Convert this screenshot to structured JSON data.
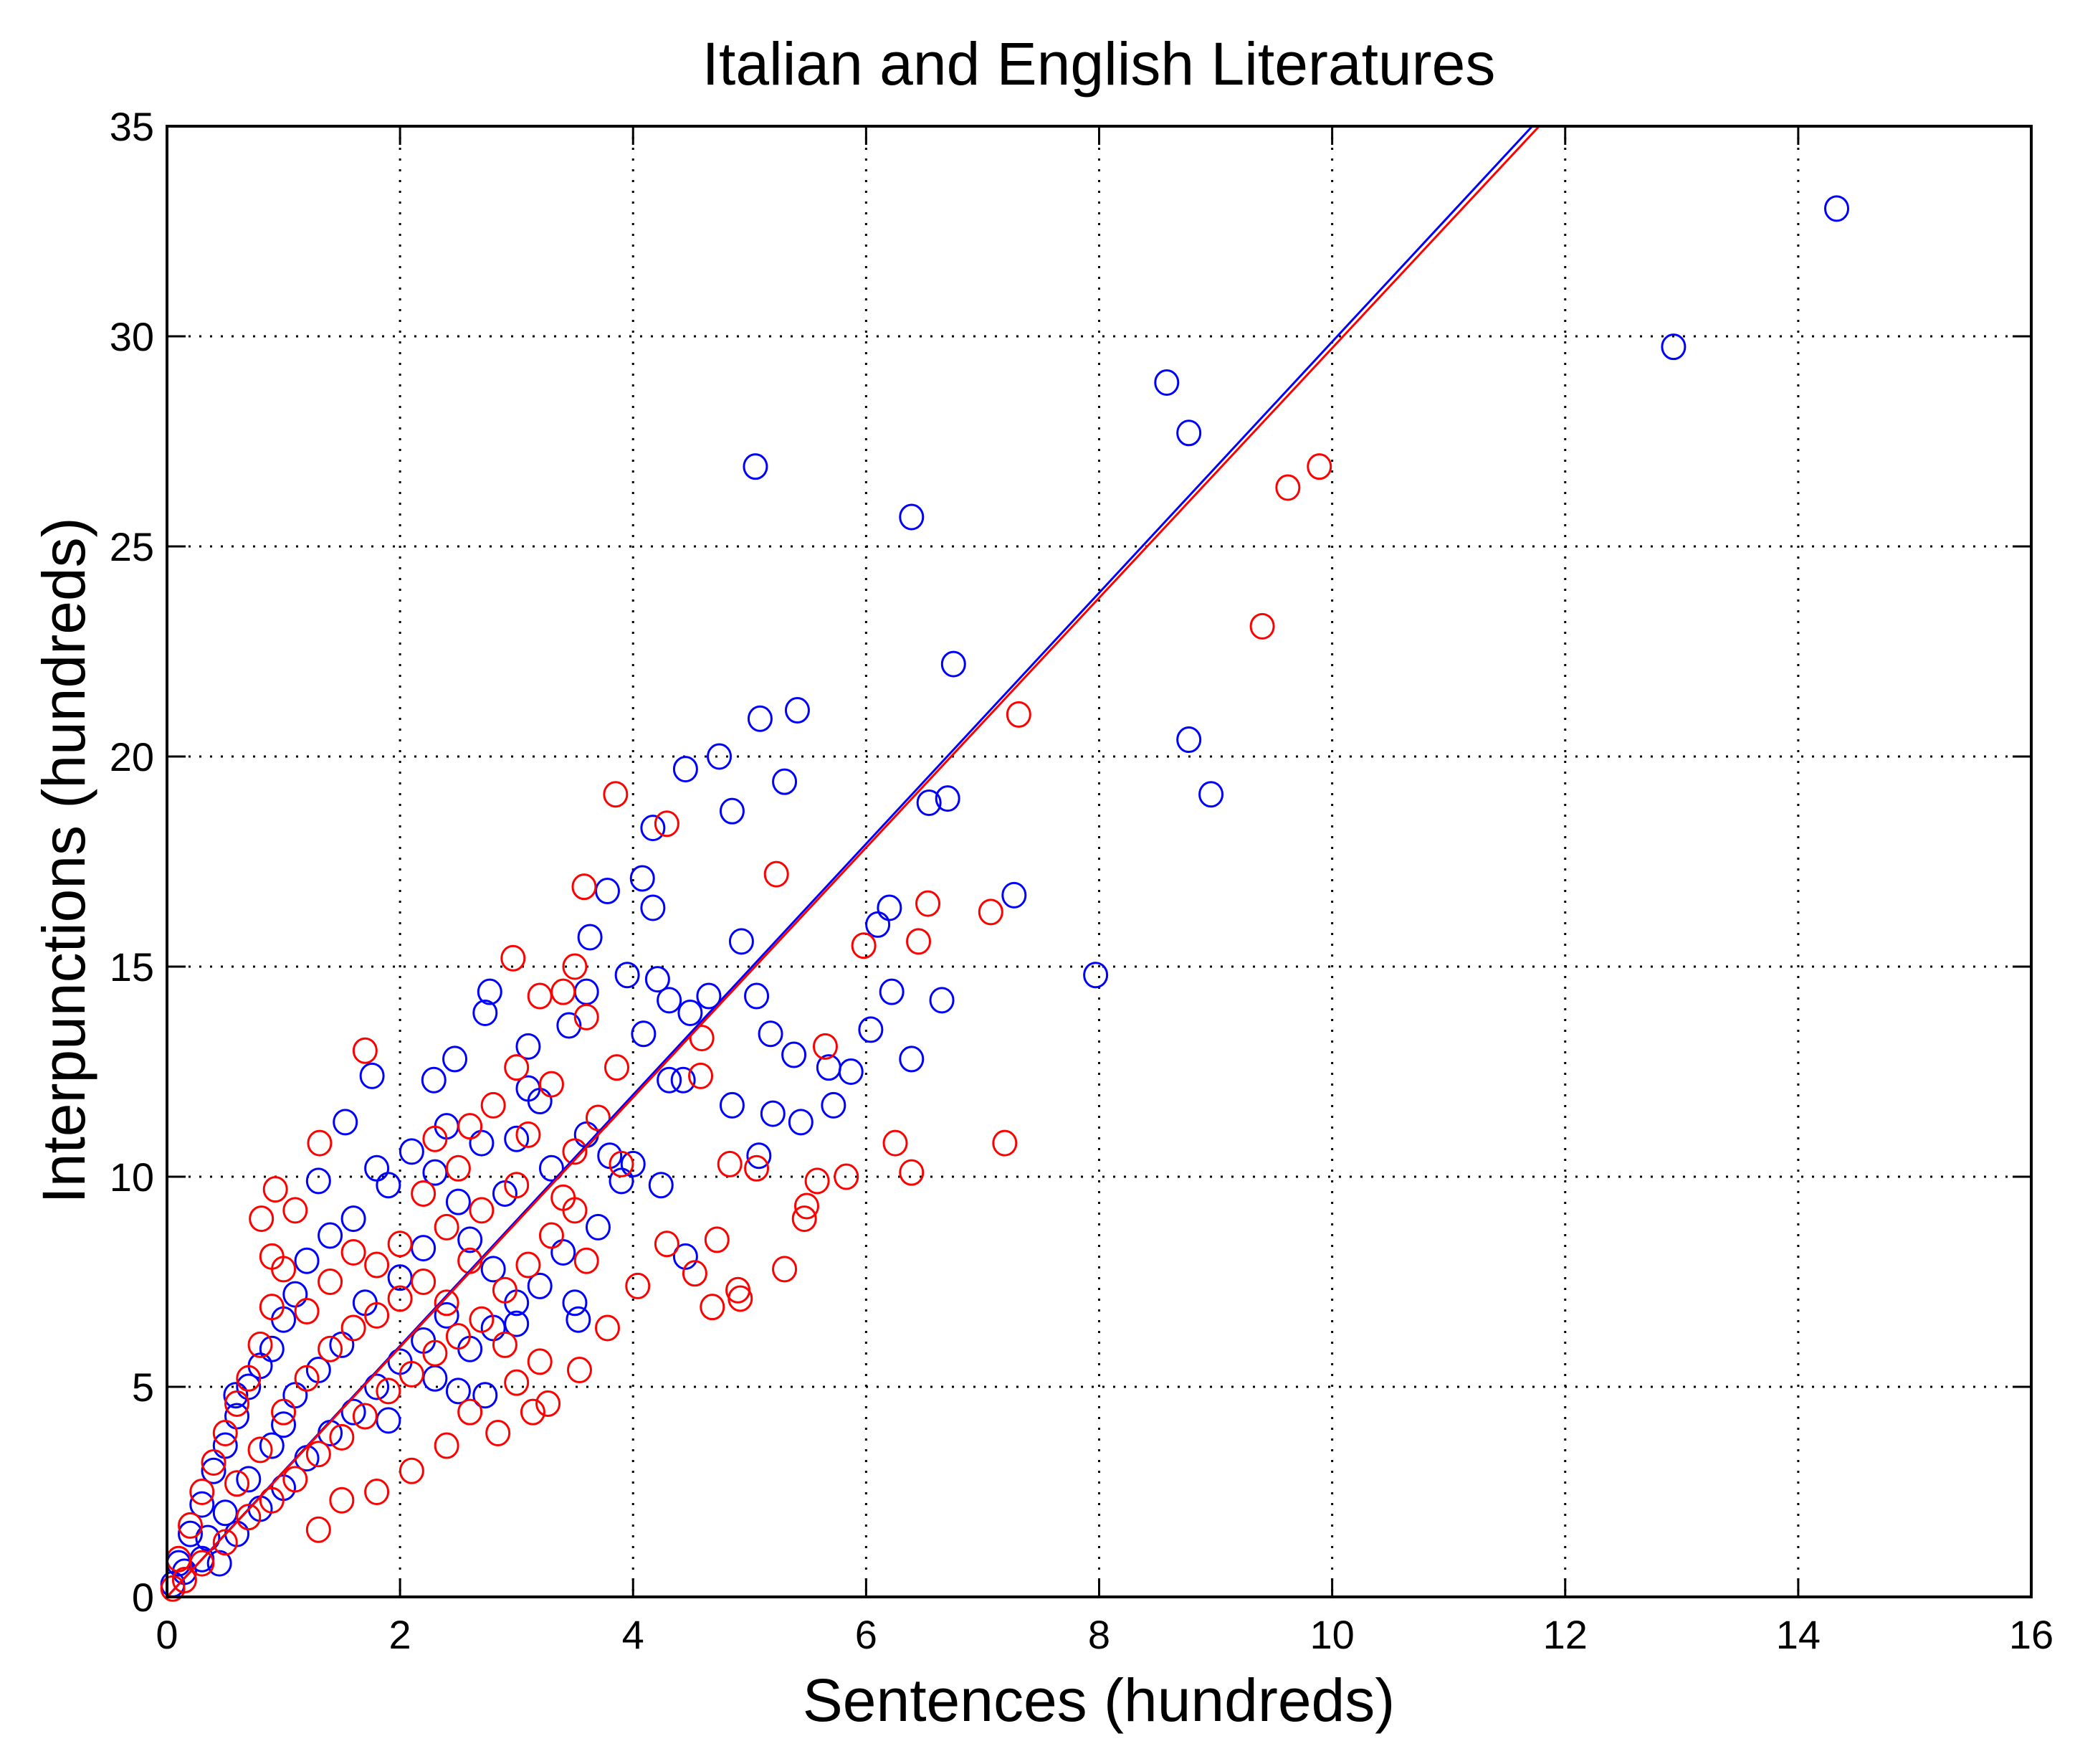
{
  "chart_data": {
    "type": "scatter",
    "title": "Italian and English Literatures",
    "xlabel": "Sentences (hundreds)",
    "ylabel": "Interpunctions (hundreds)",
    "xlim": [
      0,
      16
    ],
    "ylim": [
      0,
      35
    ],
    "xticks": [
      0,
      2,
      4,
      6,
      8,
      10,
      12,
      14,
      16
    ],
    "yticks": [
      0,
      5,
      10,
      15,
      20,
      25,
      30,
      35
    ],
    "grid": true,
    "marker": "circle-open",
    "series": [
      {
        "color": "#0000ff",
        "fit_line": {
          "slope": 2.987,
          "intercept": 0
        },
        "points": [
          [
            14.33,
            33.04
          ],
          [
            12.93,
            29.75
          ],
          [
            8.58,
            28.9
          ],
          [
            8.77,
            27.7
          ],
          [
            5.05,
            26.9
          ],
          [
            6.39,
            25.7
          ],
          [
            6.75,
            22.2
          ],
          [
            5.09,
            20.9
          ],
          [
            5.41,
            21.1
          ],
          [
            8.77,
            20.4
          ],
          [
            8.96,
            19.1
          ],
          [
            4.74,
            20.0
          ],
          [
            4.45,
            19.7
          ],
          [
            4.85,
            18.7
          ],
          [
            5.3,
            19.4
          ],
          [
            6.54,
            18.9
          ],
          [
            6.7,
            19.0
          ],
          [
            4.17,
            18.3
          ],
          [
            7.27,
            16.7
          ],
          [
            7.97,
            14.8
          ],
          [
            6.2,
            16.4
          ],
          [
            6.1,
            16.0
          ],
          [
            4.08,
            17.1
          ],
          [
            3.78,
            16.8
          ],
          [
            4.17,
            16.4
          ],
          [
            4.93,
            15.6
          ],
          [
            6.22,
            14.4
          ],
          [
            6.65,
            14.2
          ],
          [
            6.04,
            13.5
          ],
          [
            5.18,
            13.4
          ],
          [
            5.38,
            12.9
          ],
          [
            5.68,
            12.6
          ],
          [
            5.87,
            12.5
          ],
          [
            6.39,
            12.8
          ],
          [
            5.72,
            11.7
          ],
          [
            5.44,
            11.3
          ],
          [
            5.2,
            11.5
          ],
          [
            4.85,
            11.7
          ],
          [
            5.08,
            10.5
          ],
          [
            4.65,
            14.3
          ],
          [
            4.49,
            13.9
          ],
          [
            4.31,
            14.2
          ],
          [
            4.21,
            14.7
          ],
          [
            3.95,
            14.8
          ],
          [
            4.09,
            13.4
          ],
          [
            4.31,
            12.3
          ],
          [
            4.43,
            12.3
          ],
          [
            5.06,
            14.3
          ],
          [
            1.53,
            11.3
          ],
          [
            1.76,
            12.4
          ],
          [
            2.29,
            12.3
          ],
          [
            2.47,
            12.8
          ],
          [
            2.77,
            14.4
          ],
          [
            2.73,
            13.9
          ],
          [
            3.63,
            15.7
          ],
          [
            3.6,
            14.4
          ],
          [
            4.24,
            9.8
          ],
          [
            4.45,
            8.1
          ],
          [
            3.53,
            6.6
          ],
          [
            2.73,
            4.8
          ],
          [
            0.59,
            4.8
          ],
          [
            3.1,
            12.1
          ],
          [
            3.2,
            11.8
          ],
          [
            3.0,
            10.9
          ],
          [
            2.9,
            9.6
          ],
          [
            3.3,
            10.2
          ],
          [
            3.6,
            11.0
          ],
          [
            3.8,
            10.5
          ],
          [
            3.9,
            9.9
          ],
          [
            4.0,
            10.3
          ],
          [
            3.7,
            8.8
          ],
          [
            3.4,
            8.2
          ],
          [
            3.2,
            7.4
          ],
          [
            3.5,
            7.0
          ],
          [
            3.0,
            6.5
          ],
          [
            2.8,
            7.8
          ],
          [
            2.6,
            8.5
          ],
          [
            2.5,
            9.4
          ],
          [
            2.3,
            10.1
          ],
          [
            2.1,
            10.6
          ],
          [
            1.9,
            9.8
          ],
          [
            1.8,
            10.2
          ],
          [
            1.6,
            9.0
          ],
          [
            1.4,
            8.6
          ],
          [
            1.3,
            9.9
          ],
          [
            1.2,
            8.0
          ],
          [
            1.1,
            7.2
          ],
          [
            1.0,
            6.6
          ],
          [
            0.9,
            5.9
          ],
          [
            0.8,
            5.5
          ],
          [
            0.7,
            5.0
          ],
          [
            0.6,
            4.3
          ],
          [
            0.5,
            3.6
          ],
          [
            0.4,
            3.0
          ],
          [
            0.3,
            2.2
          ],
          [
            0.2,
            1.5
          ],
          [
            0.1,
            0.8
          ],
          [
            0.05,
            0.3
          ],
          [
            0.15,
            0.6
          ],
          [
            0.3,
            0.9
          ],
          [
            0.45,
            0.8
          ],
          [
            0.6,
            1.5
          ],
          [
            0.8,
            2.1
          ],
          [
            1.0,
            2.6
          ],
          [
            1.2,
            3.3
          ],
          [
            1.4,
            3.9
          ],
          [
            1.6,
            4.4
          ],
          [
            1.8,
            5.0
          ],
          [
            2.0,
            5.6
          ],
          [
            2.2,
            6.1
          ],
          [
            2.4,
            6.7
          ],
          [
            2.6,
            5.9
          ],
          [
            2.8,
            6.4
          ],
          [
            3.0,
            7.0
          ],
          [
            1.5,
            6.0
          ],
          [
            1.7,
            7.0
          ],
          [
            2.0,
            7.6
          ],
          [
            2.2,
            8.3
          ],
          [
            1.1,
            4.8
          ],
          [
            0.9,
            3.6
          ],
          [
            0.7,
            2.8
          ],
          [
            1.3,
            5.4
          ],
          [
            2.5,
            4.9
          ],
          [
            1.9,
            4.2
          ],
          [
            2.3,
            5.2
          ],
          [
            1.0,
            4.1
          ],
          [
            0.5,
            2.0
          ],
          [
            0.35,
            1.4
          ],
          [
            2.7,
            10.8
          ],
          [
            2.4,
            11.2
          ],
          [
            3.45,
            13.6
          ],
          [
            3.1,
            13.1
          ]
        ]
      },
      {
        "color": "#ff0000",
        "fit_line": {
          "slope": 2.972,
          "intercept": 0
        },
        "points": [
          [
            9.89,
            26.9
          ],
          [
            9.62,
            26.4
          ],
          [
            9.4,
            23.1
          ],
          [
            7.31,
            21.0
          ],
          [
            3.85,
            19.1
          ],
          [
            4.29,
            18.4
          ],
          [
            5.23,
            17.2
          ],
          [
            6.53,
            16.5
          ],
          [
            7.07,
            16.3
          ],
          [
            5.98,
            15.5
          ],
          [
            6.45,
            15.6
          ],
          [
            3.58,
            16.9
          ],
          [
            5.65,
            13.1
          ],
          [
            7.19,
            10.8
          ],
          [
            6.25,
            10.8
          ],
          [
            6.39,
            10.1
          ],
          [
            5.83,
            10.0
          ],
          [
            5.58,
            9.9
          ],
          [
            5.49,
            9.3
          ],
          [
            5.47,
            9.0
          ],
          [
            5.06,
            10.2
          ],
          [
            4.83,
            10.3
          ],
          [
            4.29,
            8.4
          ],
          [
            4.72,
            8.5
          ],
          [
            4.53,
            7.7
          ],
          [
            5.3,
            7.8
          ],
          [
            4.9,
            7.3
          ],
          [
            4.92,
            7.1
          ],
          [
            4.68,
            6.9
          ],
          [
            4.04,
            7.4
          ],
          [
            3.78,
            6.4
          ],
          [
            3.54,
            5.4
          ],
          [
            3.27,
            4.6
          ],
          [
            3.14,
            4.4
          ],
          [
            2.84,
            3.9
          ],
          [
            1.7,
            13.0
          ],
          [
            2.97,
            15.2
          ],
          [
            4.59,
            13.3
          ],
          [
            4.58,
            12.4
          ],
          [
            3.86,
            12.6
          ],
          [
            1.31,
            10.8
          ],
          [
            0.93,
            9.7
          ],
          [
            0.81,
            9.0
          ],
          [
            3.5,
            15.0
          ],
          [
            3.4,
            14.4
          ],
          [
            3.2,
            14.3
          ],
          [
            3.6,
            13.8
          ],
          [
            3.3,
            12.2
          ],
          [
            3.0,
            12.6
          ],
          [
            2.8,
            11.7
          ],
          [
            2.6,
            11.2
          ],
          [
            3.1,
            11.0
          ],
          [
            3.5,
            10.6
          ],
          [
            3.7,
            11.4
          ],
          [
            3.9,
            10.3
          ],
          [
            3.0,
            9.8
          ],
          [
            2.7,
            9.2
          ],
          [
            2.4,
            8.8
          ],
          [
            2.2,
            9.6
          ],
          [
            2.0,
            8.4
          ],
          [
            1.8,
            7.9
          ],
          [
            1.6,
            8.2
          ],
          [
            1.4,
            7.5
          ],
          [
            1.2,
            6.8
          ],
          [
            1.0,
            7.8
          ],
          [
            0.9,
            6.9
          ],
          [
            0.8,
            6.0
          ],
          [
            0.7,
            5.2
          ],
          [
            0.6,
            4.6
          ],
          [
            0.5,
            3.9
          ],
          [
            0.4,
            3.2
          ],
          [
            0.3,
            2.5
          ],
          [
            0.2,
            1.7
          ],
          [
            0.1,
            0.9
          ],
          [
            0.05,
            0.2
          ],
          [
            0.15,
            0.4
          ],
          [
            0.3,
            0.8
          ],
          [
            0.5,
            1.3
          ],
          [
            0.7,
            1.9
          ],
          [
            0.9,
            2.3
          ],
          [
            1.1,
            2.8
          ],
          [
            1.3,
            3.4
          ],
          [
            1.5,
            3.8
          ],
          [
            1.7,
            4.3
          ],
          [
            1.9,
            4.9
          ],
          [
            2.1,
            5.3
          ],
          [
            2.3,
            5.8
          ],
          [
            2.5,
            6.2
          ],
          [
            2.7,
            6.6
          ],
          [
            2.9,
            7.3
          ],
          [
            3.1,
            7.9
          ],
          [
            3.3,
            8.6
          ],
          [
            3.5,
            9.2
          ],
          [
            1.2,
            5.2
          ],
          [
            1.4,
            5.9
          ],
          [
            1.6,
            6.4
          ],
          [
            1.8,
            6.7
          ],
          [
            2.0,
            7.1
          ],
          [
            2.2,
            7.5
          ],
          [
            2.4,
            7.0
          ],
          [
            2.6,
            8.0
          ],
          [
            1.0,
            4.4
          ],
          [
            0.8,
            3.5
          ],
          [
            0.6,
            2.7
          ],
          [
            1.5,
            2.3
          ],
          [
            1.3,
            1.6
          ],
          [
            1.8,
            2.5
          ],
          [
            2.1,
            3.0
          ],
          [
            2.4,
            3.6
          ],
          [
            2.6,
            4.4
          ],
          [
            3.0,
            5.1
          ],
          [
            3.2,
            5.6
          ],
          [
            2.9,
            6.0
          ],
          [
            1.1,
            9.2
          ],
          [
            0.9,
            8.1
          ],
          [
            2.3,
            10.9
          ],
          [
            2.5,
            10.2
          ],
          [
            3.4,
            9.5
          ],
          [
            3.6,
            8.0
          ]
        ]
      }
    ]
  }
}
